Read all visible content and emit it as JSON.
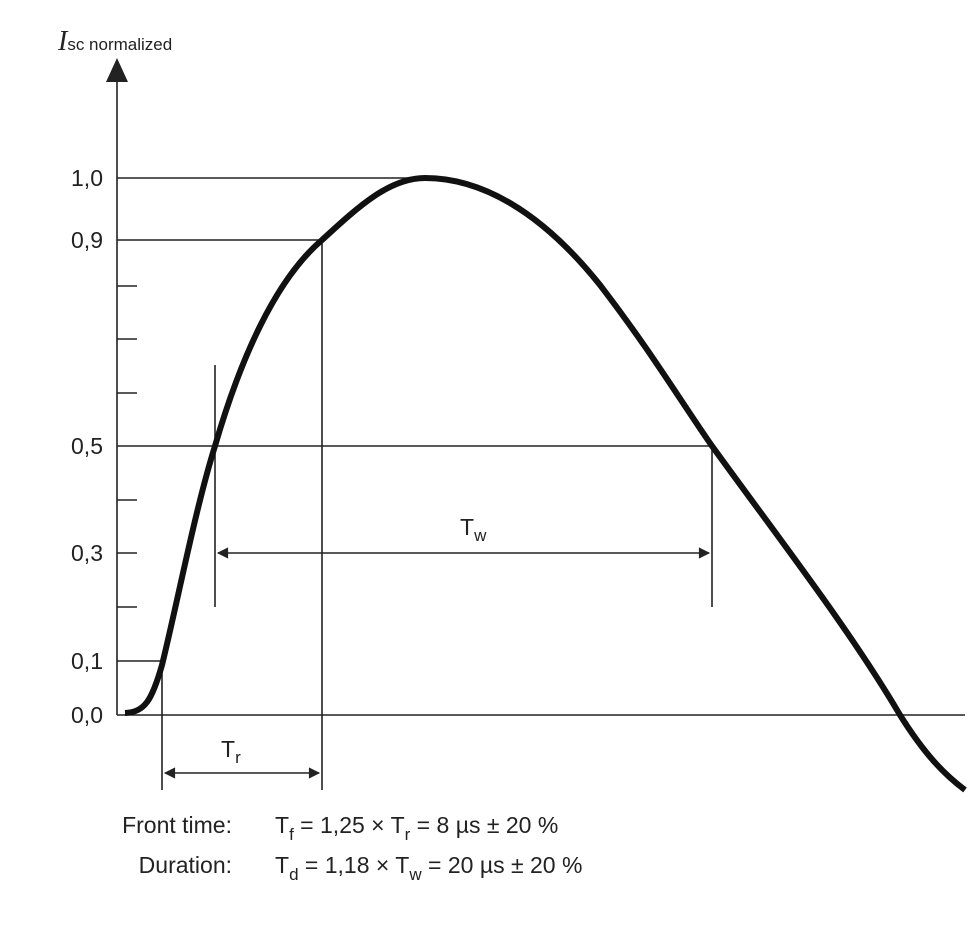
{
  "axis_label": {
    "symbol": "I",
    "subscript": "sc normalized"
  },
  "y_labels": [
    "1,0",
    "0,9",
    "0,5",
    "0,3",
    "0,1",
    "0,0"
  ],
  "intervals": {
    "width": {
      "symbol": "T",
      "subscript": "w"
    },
    "rise": {
      "symbol": "T",
      "subscript": "r"
    }
  },
  "formulas": [
    {
      "label": "Front time:",
      "parts": [
        {
          "text": "T"
        },
        {
          "sub": "f"
        },
        {
          "text": " = 1,25 × T"
        },
        {
          "sub": "r"
        },
        {
          "text": " = 8 µs ± 20 %"
        }
      ]
    },
    {
      "label": "Duration:",
      "parts": [
        {
          "text": "T"
        },
        {
          "sub": "d"
        },
        {
          "text": " = 1,18 × T"
        },
        {
          "sub": "w"
        },
        {
          "text": " = 20 µs ± 20 %"
        }
      ]
    }
  ]
}
